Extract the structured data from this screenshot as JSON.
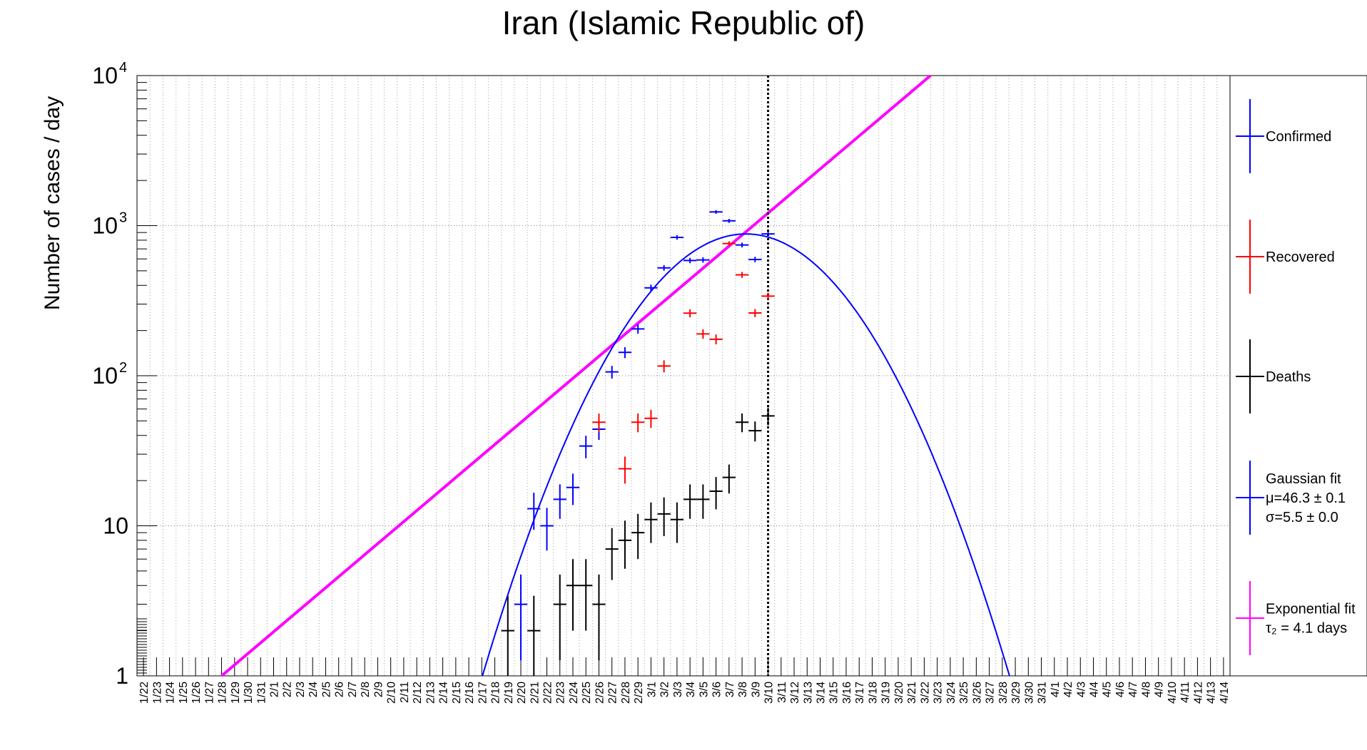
{
  "chart_data": {
    "type": "scatter",
    "title": "Iran (Islamic Republic of)",
    "ylabel": "Number of cases / day",
    "xlabel": "",
    "y_scale": "log",
    "ylim": [
      1,
      10000
    ],
    "y_ticks": [
      {
        "value": 1,
        "base": "1",
        "exp": ""
      },
      {
        "value": 10,
        "base": "10",
        "exp": ""
      },
      {
        "value": 100,
        "base": "10",
        "exp": "2"
      },
      {
        "value": 1000,
        "base": "10",
        "exp": "3"
      },
      {
        "value": 10000,
        "base": "10",
        "exp": "4"
      }
    ],
    "x_categories": [
      "1/22",
      "1/23",
      "1/24",
      "1/25",
      "1/26",
      "1/27",
      "1/28",
      "1/29",
      "1/30",
      "1/31",
      "2/1",
      "2/2",
      "2/3",
      "2/4",
      "2/5",
      "2/6",
      "2/7",
      "2/8",
      "2/9",
      "2/10",
      "2/11",
      "2/12",
      "2/13",
      "2/14",
      "2/15",
      "2/16",
      "2/17",
      "2/18",
      "2/19",
      "2/20",
      "2/21",
      "2/22",
      "2/23",
      "2/24",
      "2/25",
      "2/26",
      "2/27",
      "2/28",
      "2/29",
      "3/1",
      "3/2",
      "3/3",
      "3/4",
      "3/5",
      "3/6",
      "3/7",
      "3/8",
      "3/9",
      "3/10",
      "3/11",
      "3/12",
      "3/13",
      "3/14",
      "3/15",
      "3/16",
      "3/17",
      "3/18",
      "3/19",
      "3/20",
      "3/21",
      "3/22",
      "3/23",
      "3/24",
      "3/25",
      "3/26",
      "3/27",
      "3/28",
      "3/29",
      "3/30",
      "3/31",
      "4/1",
      "4/2",
      "4/3",
      "4/4",
      "4/5",
      "4/6",
      "4/7",
      "4/8",
      "4/9",
      "4/10",
      "4/11",
      "4/12",
      "4/13",
      "4/14"
    ],
    "grid": true,
    "series": [
      {
        "name": "Confirmed",
        "color": "#0000ff",
        "points": [
          [
            "2/20",
            3
          ],
          [
            "2/21",
            13
          ],
          [
            "2/22",
            10
          ],
          [
            "2/23",
            15
          ],
          [
            "2/24",
            18
          ],
          [
            "2/25",
            34
          ],
          [
            "2/26",
            44
          ],
          [
            "2/27",
            106
          ],
          [
            "2/28",
            143
          ],
          [
            "2/29",
            205
          ],
          [
            "3/1",
            385
          ],
          [
            "3/2",
            523
          ],
          [
            "3/3",
            835
          ],
          [
            "3/4",
            586
          ],
          [
            "3/5",
            591
          ],
          [
            "3/6",
            1234
          ],
          [
            "3/7",
            1076
          ],
          [
            "3/8",
            743
          ],
          [
            "3/9",
            595
          ],
          [
            "3/10",
            881
          ]
        ]
      },
      {
        "name": "Recovered",
        "color": "#ff0000",
        "points": [
          [
            "2/26",
            49
          ],
          [
            "2/28",
            24
          ],
          [
            "2/29",
            49
          ],
          [
            "3/1",
            52
          ],
          [
            "3/2",
            116
          ],
          [
            "3/4",
            261
          ],
          [
            "3/5",
            190
          ],
          [
            "3/6",
            175
          ],
          [
            "3/7",
            760
          ],
          [
            "3/8",
            470
          ],
          [
            "3/9",
            262
          ],
          [
            "3/10",
            339
          ]
        ]
      },
      {
        "name": "Deaths",
        "color": "#000000",
        "points": [
          [
            "2/19",
            2
          ],
          [
            "2/21",
            2
          ],
          [
            "2/23",
            3
          ],
          [
            "2/24",
            4
          ],
          [
            "2/25",
            4
          ],
          [
            "2/26",
            3
          ],
          [
            "2/27",
            7
          ],
          [
            "2/28",
            8
          ],
          [
            "2/29",
            9
          ],
          [
            "3/1",
            11
          ],
          [
            "3/2",
            12
          ],
          [
            "3/3",
            11
          ],
          [
            "3/4",
            15
          ],
          [
            "3/5",
            15
          ],
          [
            "3/6",
            17
          ],
          [
            "3/7",
            21
          ],
          [
            "3/8",
            49
          ],
          [
            "3/9",
            43
          ],
          [
            "3/10",
            54
          ]
        ]
      }
    ],
    "gaussian_fit": {
      "color": "#0000ff",
      "mu": 46.3,
      "sigma": 5.5,
      "peak": 880
    },
    "exponential_fit": {
      "color": "#ff00ff",
      "start": "1/28",
      "y_at_start": 1,
      "doubling_days": 4.1
    },
    "vertical_marker": "3/10",
    "legend": {
      "placement": "right",
      "entries": [
        {
          "lines": [
            "Confirmed"
          ],
          "color": "#0000ff"
        },
        {
          "lines": [
            "Recovered"
          ],
          "color": "#ff0000"
        },
        {
          "lines": [
            "Deaths"
          ],
          "color": "#000000"
        },
        {
          "lines": [
            "Gaussian fit",
            "μ=46.3 ± 0.1",
            " σ=5.5 ± 0.0"
          ],
          "color": "#0000ff"
        },
        {
          "lines": [
            "Exponential fit",
            "τ₂ = 4.1 days"
          ],
          "color": "#ff00ff"
        }
      ]
    }
  }
}
